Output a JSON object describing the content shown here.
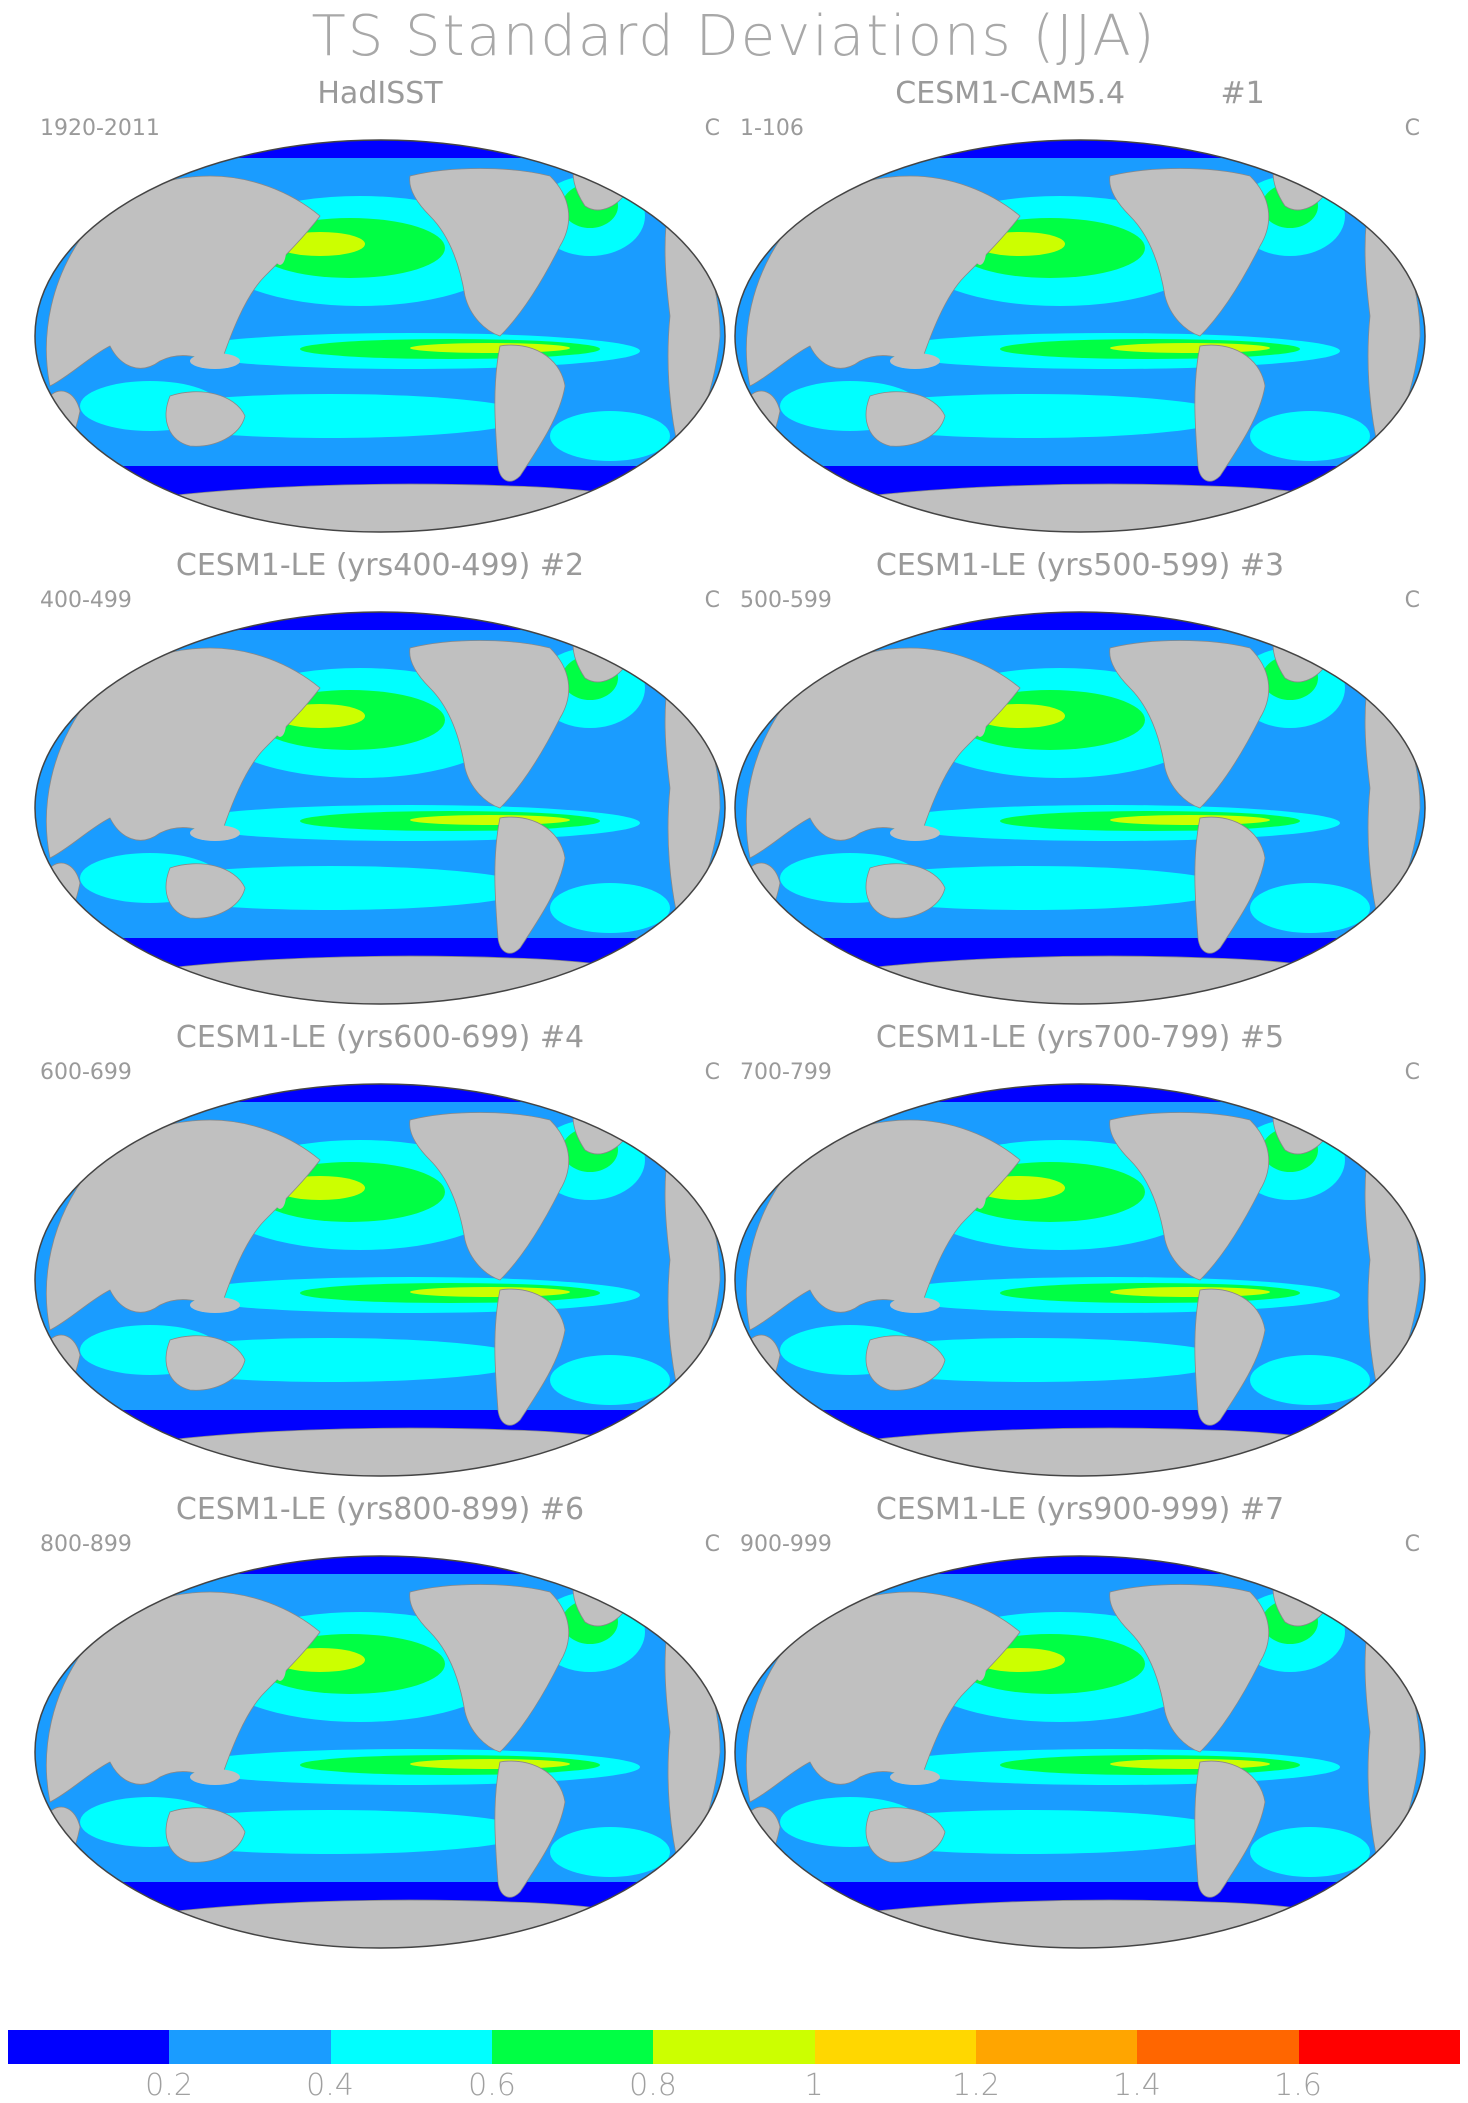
{
  "title": "TS Standard Deviations (JJA)",
  "unit": "C",
  "colors": {
    "land": "#c0c0c0",
    "ocean_base": "#1a9cff",
    "levels": [
      "#0000ff",
      "#1a9cff",
      "#00ffff",
      "#00ff44",
      "#ccff00",
      "#ffd700",
      "#ffa500",
      "#ff6600",
      "#ff0000"
    ]
  },
  "colorbar": {
    "ticks": [
      "0.2",
      "0.4",
      "0.6",
      "0.8",
      "1",
      "1.2",
      "1.4",
      "1.6"
    ]
  },
  "panels": [
    {
      "title": "HadISST",
      "period": "1920-2011"
    },
    {
      "title": "CESM1-CAM5.4          #1",
      "period": "1-106"
    },
    {
      "title": "CESM1-LE (yrs400-499) #2",
      "period": "400-499"
    },
    {
      "title": "CESM1-LE (yrs500-599) #3",
      "period": "500-599"
    },
    {
      "title": "CESM1-LE (yrs600-699) #4",
      "period": "600-699"
    },
    {
      "title": "CESM1-LE (yrs700-799) #5",
      "period": "700-799"
    },
    {
      "title": "CESM1-LE (yrs800-899) #6",
      "period": "800-899"
    },
    {
      "title": "CESM1-LE (yrs900-999) #7",
      "period": "900-999"
    }
  ]
}
